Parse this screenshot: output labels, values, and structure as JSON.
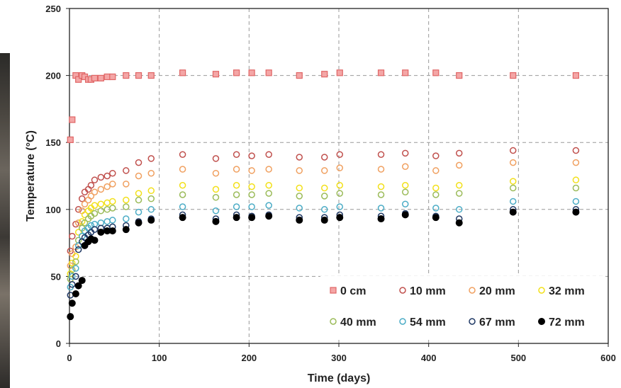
{
  "chart_data": {
    "type": "scatter",
    "xlabel": "Time (days)",
    "ylabel": "Temperature (°C)",
    "xlim": [
      0,
      600
    ],
    "ylim": [
      0,
      250
    ],
    "xticks": [
      0,
      100,
      200,
      300,
      400,
      500,
      600
    ],
    "yticks": [
      0,
      50,
      100,
      150,
      200,
      250
    ],
    "grid": true,
    "legend_position": "bottom-right",
    "x": [
      1,
      3,
      7,
      10,
      14,
      17,
      21,
      24,
      28,
      35,
      42,
      48,
      63,
      77,
      91,
      126,
      163,
      186,
      203,
      222,
      256,
      284,
      301,
      347,
      374,
      408,
      434,
      494,
      564
    ],
    "series": [
      {
        "name": "0 cm",
        "marker": "square",
        "color": "#e06666",
        "fill": "#f4a6a6",
        "values": [
          152,
          167,
          200,
          197,
          200,
          199,
          197,
          197,
          198,
          198,
          199,
          199,
          200,
          200,
          200,
          202,
          201,
          202,
          202,
          202,
          200,
          201,
          202,
          202,
          202,
          202,
          200,
          200,
          200
        ]
      },
      {
        "name": "10 mm",
        "marker": "open-circle",
        "color": "#c0504d",
        "values": [
          69,
          80,
          89,
          100,
          108,
          113,
          115,
          118,
          122,
          124,
          125,
          127,
          129,
          135,
          138,
          141,
          138,
          141,
          140,
          141,
          139,
          139,
          141,
          141,
          142,
          140,
          142,
          144,
          144
        ]
      },
      {
        "name": "20 mm",
        "marker": "open-circle",
        "color": "#f0a060",
        "values": [
          58,
          67,
          72,
          90,
          99,
          104,
          107,
          110,
          113,
          115,
          117,
          119,
          119,
          125,
          127,
          130,
          127,
          130,
          129,
          130,
          129,
          129,
          131,
          130,
          132,
          129,
          133,
          135,
          135
        ]
      },
      {
        "name": "32 mm",
        "marker": "open-circle",
        "color": "#f2e01a",
        "values": [
          52,
          60,
          65,
          83,
          91,
          96,
          99,
          101,
          103,
          104,
          105,
          106,
          107,
          112,
          114,
          118,
          115,
          118,
          117,
          118,
          116,
          116,
          118,
          117,
          118,
          116,
          118,
          121,
          122
        ]
      },
      {
        "name": "40 mm",
        "marker": "open-circle",
        "color": "#9bbb59",
        "values": [
          48,
          55,
          61,
          77,
          86,
          90,
          93,
          95,
          97,
          99,
          100,
          101,
          102,
          107,
          108,
          111,
          109,
          111,
          111,
          112,
          110,
          110,
          112,
          111,
          113,
          111,
          112,
          116,
          116
        ]
      },
      {
        "name": "54 mm",
        "marker": "open-circle",
        "color": "#4bacc6",
        "values": [
          42,
          50,
          56,
          73,
          80,
          84,
          86,
          88,
          89,
          90,
          91,
          92,
          93,
          98,
          100,
          102,
          99,
          102,
          102,
          103,
          101,
          100,
          102,
          101,
          104,
          101,
          100,
          106,
          106
        ]
      },
      {
        "name": "67 mm",
        "marker": "open-circle",
        "color": "#1f3864",
        "values": [
          36,
          44,
          50,
          70,
          76,
          79,
          81,
          83,
          85,
          86,
          86,
          87,
          88,
          91,
          93,
          96,
          93,
          96,
          95,
          96,
          94,
          94,
          96,
          95,
          97,
          95,
          93,
          100,
          100
        ]
      },
      {
        "name": "72 mm",
        "marker": "filled-circle",
        "color": "#000000",
        "values": [
          20,
          30,
          37,
          43,
          47,
          73,
          76,
          78,
          77,
          83,
          84,
          84,
          85,
          90,
          92,
          94,
          91,
          94,
          94,
          95,
          92,
          92,
          94,
          93,
          96,
          94,
          90,
          98,
          98
        ]
      }
    ],
    "legend": [
      "0 cm",
      "10 mm",
      "20 mm",
      "32 mm",
      "40 mm",
      "54 mm",
      "67 mm",
      "72 mm"
    ]
  }
}
